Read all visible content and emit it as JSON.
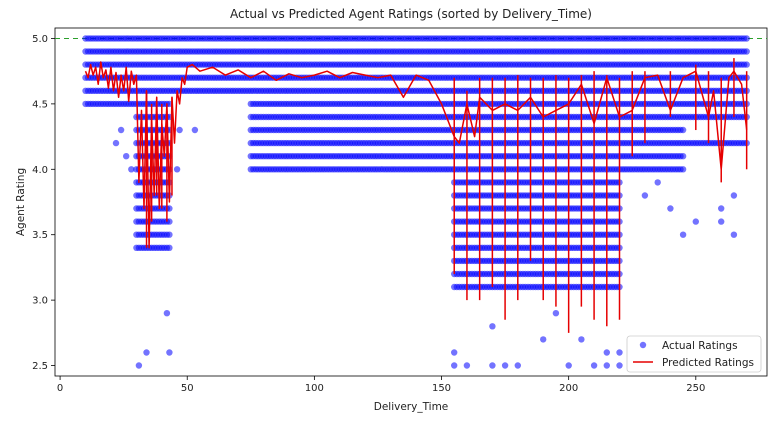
{
  "chart_data": {
    "type": "scatter",
    "title": "Actual vs Predicted Agent Ratings (sorted by Delivery_Time)",
    "xlabel": "Delivery_Time",
    "ylabel": "Agent Rating",
    "xlim": [
      -2,
      278
    ],
    "ylim": [
      2.42,
      5.08
    ],
    "xticks": [
      0,
      50,
      100,
      150,
      200,
      250
    ],
    "yticks": [
      2.5,
      3.0,
      3.5,
      4.0,
      4.5,
      5.0
    ],
    "xtick_labels": [
      "0",
      "50",
      "100",
      "150",
      "200",
      "250"
    ],
    "ytick_labels": [
      "2.5",
      "3.0",
      "3.5",
      "4.0",
      "4.5",
      "5.0"
    ],
    "reference_line": {
      "y": 5.0,
      "color": "#2ca02c",
      "style": "dashed"
    },
    "legend": {
      "position": "lower-right",
      "entries": [
        {
          "label": "Actual Ratings",
          "marker": "dot",
          "color": "#0000ff"
        },
        {
          "label": "Predicted Ratings",
          "marker": "line",
          "color": "#e60000"
        }
      ]
    },
    "series": [
      {
        "name": "Actual Ratings",
        "kind": "scatter",
        "color": "#0000ff",
        "opacity": 0.55,
        "groups": [
          {
            "x_from": 10,
            "x_to": 29,
            "y": [
              4.5,
              4.6,
              4.7,
              4.8,
              4.9,
              5.0
            ]
          },
          {
            "x_from": 30,
            "x_to": 43,
            "y": [
              3.4,
              3.5,
              3.6,
              3.7,
              3.8,
              3.9,
              4.0,
              4.1,
              4.2,
              4.3,
              4.4,
              4.5,
              4.6,
              4.7,
              4.8,
              4.9,
              5.0
            ]
          },
          {
            "x_from": 44,
            "x_to": 74,
            "y": [
              4.6,
              4.7,
              4.8,
              4.9,
              5.0
            ]
          },
          {
            "x_from": 75,
            "x_to": 154,
            "y": [
              4.0,
              4.1,
              4.2,
              4.3,
              4.4,
              4.5,
              4.6,
              4.7,
              4.8,
              4.9,
              5.0
            ]
          },
          {
            "x_from": 155,
            "x_to": 220,
            "y": [
              3.1,
              3.2,
              3.3,
              3.4,
              3.5,
              3.6,
              3.7,
              3.8,
              3.9,
              4.0,
              4.1,
              4.2,
              4.3,
              4.4,
              4.5,
              4.6,
              4.7,
              4.8,
              4.9,
              5.0
            ]
          },
          {
            "x_from": 221,
            "x_to": 245,
            "y": [
              4.0,
              4.1,
              4.2,
              4.3,
              4.4,
              4.5,
              4.6,
              4.7,
              4.8,
              4.9,
              5.0
            ]
          },
          {
            "x_from": 246,
            "x_to": 270,
            "y": [
              4.2,
              4.4,
              4.5,
              4.6,
              4.7,
              4.8,
              4.9,
              5.0
            ]
          }
        ],
        "points": [
          [
            31,
            2.5
          ],
          [
            34,
            2.6
          ],
          [
            42,
            2.9
          ],
          [
            43,
            2.6
          ],
          [
            24,
            4.3
          ],
          [
            22,
            4.2
          ],
          [
            26,
            4.1
          ],
          [
            28,
            4.0
          ],
          [
            46,
            4.0
          ],
          [
            47,
            4.3
          ],
          [
            53,
            4.3
          ],
          [
            155,
            2.6
          ],
          [
            155,
            2.5
          ],
          [
            160,
            2.5
          ],
          [
            170,
            2.8
          ],
          [
            170,
            2.5
          ],
          [
            175,
            2.5
          ],
          [
            180,
            2.5
          ],
          [
            190,
            2.7
          ],
          [
            195,
            2.9
          ],
          [
            200,
            2.5
          ],
          [
            205,
            2.7
          ],
          [
            210,
            2.5
          ],
          [
            215,
            2.6
          ],
          [
            215,
            2.5
          ],
          [
            220,
            2.6
          ],
          [
            220,
            2.5
          ],
          [
            230,
            3.8
          ],
          [
            235,
            3.9
          ],
          [
            240,
            3.7
          ],
          [
            245,
            3.5
          ],
          [
            250,
            3.6
          ],
          [
            260,
            3.7
          ],
          [
            260,
            3.6
          ],
          [
            265,
            3.5
          ],
          [
            265,
            3.8
          ]
        ]
      },
      {
        "name": "Predicted Ratings",
        "kind": "line",
        "color": "#e60000",
        "x": [
          10,
          11,
          12,
          13,
          14,
          15,
          16,
          17,
          18,
          19,
          20,
          21,
          22,
          23,
          24,
          25,
          26,
          27,
          28,
          29,
          30,
          31,
          32,
          33,
          34,
          35,
          36,
          37,
          38,
          39,
          40,
          41,
          42,
          43,
          44,
          45,
          46,
          47,
          48,
          49,
          50,
          52,
          55,
          60,
          65,
          70,
          75,
          80,
          85,
          90,
          95,
          100,
          105,
          110,
          115,
          120,
          125,
          130,
          135,
          140,
          145,
          150,
          155,
          157,
          160,
          163,
          165,
          170,
          175,
          180,
          185,
          190,
          195,
          200,
          205,
          210,
          215,
          220,
          225,
          230,
          235,
          240,
          245,
          250,
          255,
          257,
          260,
          263,
          265,
          268,
          270
        ],
        "y": [
          4.75,
          4.7,
          4.8,
          4.72,
          4.78,
          4.65,
          4.82,
          4.7,
          4.76,
          4.62,
          4.78,
          4.6,
          4.74,
          4.55,
          4.72,
          4.6,
          4.78,
          4.52,
          4.75,
          4.65,
          4.72,
          3.9,
          4.45,
          3.7,
          4.6,
          3.4,
          4.4,
          3.8,
          4.55,
          3.7,
          4.35,
          4.1,
          4.5,
          3.75,
          4.55,
          4.2,
          4.6,
          4.5,
          4.7,
          4.65,
          4.78,
          4.8,
          4.75,
          4.78,
          4.72,
          4.76,
          4.7,
          4.75,
          4.68,
          4.73,
          4.7,
          4.72,
          4.75,
          4.7,
          4.74,
          4.72,
          4.7,
          4.72,
          4.55,
          4.72,
          4.68,
          4.5,
          4.25,
          4.2,
          4.5,
          4.25,
          4.55,
          4.45,
          4.5,
          4.45,
          4.55,
          4.4,
          4.45,
          4.5,
          4.65,
          4.35,
          4.7,
          4.4,
          4.45,
          4.7,
          4.72,
          4.45,
          4.7,
          4.75,
          4.4,
          4.6,
          4.0,
          4.7,
          4.75,
          4.65,
          4.3
        ]
      },
      {
        "name": "Predicted Ratings spread",
        "kind": "vertical-segments",
        "color": "#e60000",
        "segments": [
          [
            34,
            3.4,
            4.6
          ],
          [
            36,
            3.6,
            4.5
          ],
          [
            38,
            3.8,
            4.55
          ],
          [
            40,
            3.7,
            4.5
          ],
          [
            42,
            3.6,
            4.45
          ],
          [
            44,
            3.8,
            4.55
          ],
          [
            155,
            3.2,
            4.7
          ],
          [
            160,
            3.0,
            4.6
          ],
          [
            165,
            3.0,
            4.7
          ],
          [
            170,
            3.1,
            4.7
          ],
          [
            175,
            2.85,
            4.7
          ],
          [
            180,
            3.0,
            4.72
          ],
          [
            185,
            3.3,
            4.7
          ],
          [
            190,
            3.0,
            4.7
          ],
          [
            195,
            2.95,
            4.72
          ],
          [
            200,
            2.75,
            4.7
          ],
          [
            205,
            2.95,
            4.72
          ],
          [
            210,
            2.85,
            4.75
          ],
          [
            215,
            2.8,
            4.72
          ],
          [
            220,
            2.85,
            4.7
          ],
          [
            225,
            4.1,
            4.75
          ],
          [
            230,
            4.2,
            4.75
          ],
          [
            240,
            4.4,
            4.75
          ],
          [
            250,
            4.3,
            4.8
          ],
          [
            255,
            4.2,
            4.75
          ],
          [
            260,
            3.9,
            4.7
          ],
          [
            265,
            4.4,
            4.85
          ],
          [
            270,
            4.0,
            4.75
          ]
        ]
      }
    ]
  }
}
